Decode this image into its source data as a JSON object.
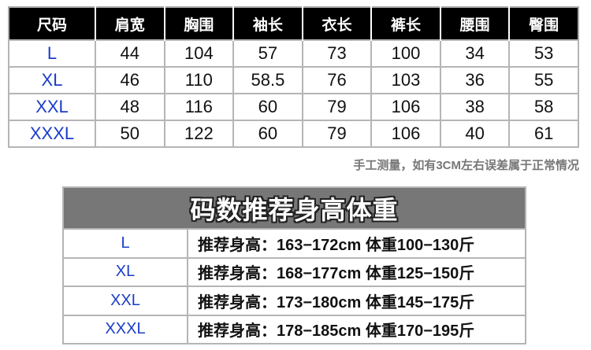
{
  "size_table": {
    "headers": [
      "尺码",
      "肩宽",
      "胸围",
      "袖长",
      "衣长",
      "裤长",
      "腰围",
      "臀围"
    ],
    "rows": [
      [
        "L",
        "44",
        "104",
        "57",
        "73",
        "100",
        "34",
        "53"
      ],
      [
        "XL",
        "46",
        "110",
        "58.5",
        "76",
        "103",
        "36",
        "55"
      ],
      [
        "XXL",
        "48",
        "116",
        "60",
        "79",
        "106",
        "38",
        "58"
      ],
      [
        "XXXL",
        "50",
        "122",
        "60",
        "79",
        "106",
        "40",
        "61"
      ]
    ]
  },
  "note": "手工测量，如有3CM左右误差属于正常情况",
  "recommend_table": {
    "title": "码数推荐身高体重",
    "rows": [
      {
        "size": "L",
        "text": "推荐身高：163−172cm 体重100−130斤"
      },
      {
        "size": "XL",
        "text": "推荐身高：168−177cm 体重125−150斤"
      },
      {
        "size": "XXL",
        "text": "推荐身高：173−180cm 体重145−175斤"
      },
      {
        "size": "XXXL",
        "text": "推荐身高：178−185cm 体重170−195斤"
      }
    ]
  },
  "colors": {
    "header_bg": "#000000",
    "size_text": "#1a3cc8",
    "title_bg": "#777777",
    "note_text": "#777777"
  }
}
